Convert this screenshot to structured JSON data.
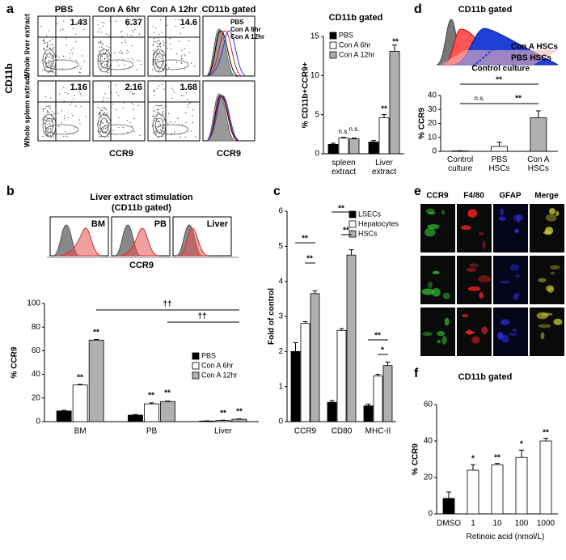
{
  "panel_labels": [
    "a",
    "b",
    "c",
    "d",
    "e",
    "f"
  ],
  "flow": {
    "columns": [
      "PBS",
      "Con A 6hr",
      "Con A 12hr",
      "CD11b gated"
    ],
    "y_label": "CD11b",
    "rows": [
      "Whole liver extract",
      "Whole spleen extract"
    ],
    "percentages": [
      [
        1.43,
        6.37,
        14.6
      ],
      [
        1.16,
        2.16,
        1.68
      ]
    ],
    "x_label": "CCR9",
    "histogram_legend": [
      {
        "name": "PBS",
        "color": "#000000"
      },
      {
        "name": "Con A 6hr",
        "color": "#e41a1c"
      },
      {
        "name": "Con A 12hr",
        "color": "#1f3fd6"
      }
    ]
  },
  "b_histograms": {
    "title": [
      "Liver extract stimulation",
      "(CD11b gated)"
    ],
    "panels": [
      "BM",
      "PB",
      "Liver"
    ],
    "x_label": "CCR9"
  },
  "d_histogram": {
    "title": "CD11b gated",
    "labels": [
      "Con A HSCs",
      "PBS HSCs",
      "Control culture"
    ]
  },
  "e_images": {
    "columns": [
      "CCR9",
      "F4/80",
      "GFAP",
      "Merge"
    ]
  },
  "chart_data": [
    {
      "type": "bar",
      "title": "CD11b gated",
      "y_label": "% CD11b+CCR9+",
      "categories": [
        "spleen extract",
        "Liver extract"
      ],
      "series": [
        {
          "name": "PBS",
          "color": "#000000",
          "values": [
            1.2,
            1.5
          ],
          "errors": [
            0.15,
            0.2
          ]
        },
        {
          "name": "Con A 6hr",
          "color": "#ffffff",
          "values": [
            2.0,
            4.6
          ],
          "errors": [
            0.1,
            0.4
          ]
        },
        {
          "name": "Con A 12hr",
          "color": "#b0b0b0",
          "values": [
            1.9,
            13.1
          ],
          "errors": [
            0.1,
            0.8
          ]
        }
      ],
      "ylim": [
        0,
        15
      ],
      "yticks": [
        0,
        5,
        10,
        15
      ],
      "annotations": [
        "n.s.",
        "n.s.",
        "**",
        "**"
      ]
    },
    {
      "type": "bar",
      "y_label": "% CCR9",
      "categories": [
        "BM",
        "PB",
        "Liver"
      ],
      "series": [
        {
          "name": "PBS",
          "color": "#000000",
          "values": [
            9,
            5.5,
            0.5
          ],
          "errors": [
            0.5,
            0.5,
            0.2
          ]
        },
        {
          "name": "Con A 6hr",
          "color": "#ffffff",
          "values": [
            31,
            15,
            1
          ],
          "errors": [
            0.5,
            0.8,
            0.2
          ]
        },
        {
          "name": "Con A 12hr",
          "color": "#b0b0b0",
          "values": [
            69,
            17,
            2
          ],
          "errors": [
            0.5,
            0.5,
            0.3
          ]
        }
      ],
      "ylim": [
        0,
        100
      ],
      "yticks": [
        0,
        20,
        40,
        60,
        80,
        100
      ],
      "annotations": [
        "**",
        "**",
        "**",
        "**",
        "**",
        "**",
        "††",
        "††"
      ]
    },
    {
      "type": "bar",
      "y_label": "Fold of control",
      "categories": [
        "CCR9",
        "CD80",
        "MHC-II"
      ],
      "series": [
        {
          "name": "LSECs",
          "color": "#000000",
          "values": [
            2.0,
            0.55,
            0.45
          ],
          "errors": [
            0.25,
            0.05,
            0.05
          ]
        },
        {
          "name": "Hepatocytes",
          "color": "#ffffff",
          "values": [
            2.8,
            2.6,
            1.3
          ],
          "errors": [
            0.05,
            0.05,
            0.05
          ]
        },
        {
          "name": "HSCs",
          "color": "#b0b0b0",
          "values": [
            3.65,
            4.75,
            1.6
          ],
          "errors": [
            0.08,
            0.15,
            0.1
          ]
        }
      ],
      "ylim": [
        0,
        6
      ],
      "yticks": [
        0,
        1,
        2,
        3,
        4,
        5,
        6
      ],
      "annotations": [
        "**",
        "**",
        "**",
        "**",
        "**",
        "*"
      ]
    },
    {
      "type": "bar",
      "y_label": "% CCR9",
      "categories": [
        "Control culture",
        "PBS HSCs",
        "Con A HSCs"
      ],
      "values": [
        0.3,
        3.5,
        24
      ],
      "errors": [
        0.1,
        3,
        5
      ],
      "colors": [
        "#000000",
        "#ffffff",
        "#b0b0b0"
      ],
      "ylim": [
        0,
        40
      ],
      "yticks": [
        0,
        10,
        20,
        30,
        40
      ],
      "annotations": [
        "**",
        "n.s.",
        "**"
      ]
    },
    {
      "type": "bar",
      "title": "CD11b gated",
      "y_label": "% CCR9",
      "x_label": "Retinoic acid (nmol/L)",
      "categories": [
        "DMSO",
        "1",
        "10",
        "100",
        "1000"
      ],
      "values": [
        8.5,
        24,
        27,
        31,
        40
      ],
      "errors": [
        3.5,
        3,
        0.7,
        4,
        1.5
      ],
      "colors": [
        "#000000",
        "#ffffff",
        "#ffffff",
        "#ffffff",
        "#ffffff"
      ],
      "ylim": [
        0,
        60
      ],
      "yticks": [
        0,
        20,
        40,
        60
      ],
      "annotations": [
        "*",
        "**",
        "*",
        "**"
      ]
    }
  ]
}
